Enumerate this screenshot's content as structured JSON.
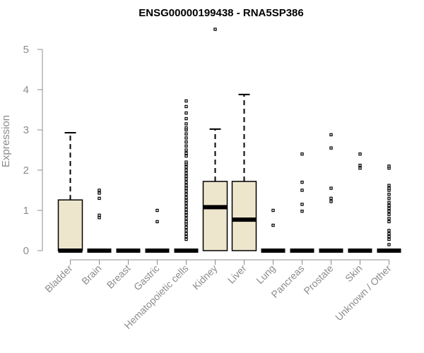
{
  "chart_data": {
    "type": "boxplot",
    "title": "ENSG00000199438 - RNA5SP386",
    "xlabel": "",
    "ylabel": "Expression",
    "ylim": [
      0,
      5
    ],
    "yticks": [
      0,
      1,
      2,
      3,
      4,
      5
    ],
    "box_color": "#ede6cd",
    "categories": [
      "Bladder",
      "Brain",
      "Breast",
      "Gastric",
      "Hematopoietic cells",
      "Kidney",
      "Liver",
      "Lung",
      "Pancreas",
      "Prostate",
      "Skin",
      "Unknown / Other"
    ],
    "series": [
      {
        "name": "Bladder",
        "q1": 0,
        "median": 0,
        "q3": 1.26,
        "whisker_low": 0,
        "whisker_high": 2.93,
        "outliers": []
      },
      {
        "name": "Brain",
        "q1": 0,
        "median": 0,
        "q3": 0,
        "whisker_low": 0,
        "whisker_high": 0,
        "outliers": [
          0.82,
          0.88,
          1.3,
          1.43,
          1.5
        ]
      },
      {
        "name": "Breast",
        "q1": 0,
        "median": 0,
        "q3": 0,
        "whisker_low": 0,
        "whisker_high": 0,
        "outliers": []
      },
      {
        "name": "Gastric",
        "q1": 0,
        "median": 0,
        "q3": 0,
        "whisker_low": 0,
        "whisker_high": 0,
        "outliers": [
          0.72,
          1.0
        ]
      },
      {
        "name": "Hematopoietic cells",
        "q1": 0,
        "median": 0,
        "q3": 0,
        "whisker_low": 0,
        "whisker_high": 0,
        "outliers": [
          0.28,
          0.35,
          0.42,
          0.5,
          0.58,
          0.66,
          0.72,
          0.8,
          0.88,
          0.95,
          1.02,
          1.1,
          1.18,
          1.25,
          1.32,
          1.4,
          1.48,
          1.55,
          1.62,
          1.7,
          1.78,
          1.85,
          1.92,
          2.0,
          2.08,
          2.15,
          2.2,
          2.35,
          2.42,
          2.5,
          2.6,
          2.7,
          2.8,
          2.9,
          3.0,
          3.05,
          3.15,
          3.28,
          3.42,
          3.58,
          3.72
        ]
      },
      {
        "name": "Kidney",
        "q1": 0,
        "median": 1.08,
        "q3": 1.72,
        "whisker_low": 0,
        "whisker_high": 3.02,
        "outliers": [
          5.5
        ]
      },
      {
        "name": "Liver",
        "q1": 0,
        "median": 0.77,
        "q3": 1.72,
        "whisker_low": 0,
        "whisker_high": 3.88,
        "outliers": []
      },
      {
        "name": "Lung",
        "q1": 0,
        "median": 0,
        "q3": 0,
        "whisker_low": 0,
        "whisker_high": 0,
        "outliers": [
          0.63,
          1.0
        ]
      },
      {
        "name": "Pancreas",
        "q1": 0,
        "median": 0,
        "q3": 0,
        "whisker_low": 0,
        "whisker_high": 0,
        "outliers": [
          0.98,
          1.15,
          1.5,
          1.7,
          2.4
        ]
      },
      {
        "name": "Prostate",
        "q1": 0,
        "median": 0,
        "q3": 0,
        "whisker_low": 0,
        "whisker_high": 0,
        "outliers": [
          1.22,
          1.3,
          1.55,
          2.55,
          2.88
        ]
      },
      {
        "name": "Skin",
        "q1": 0,
        "median": 0,
        "q3": 0,
        "whisker_low": 0,
        "whisker_high": 0,
        "outliers": [
          2.05,
          2.12,
          2.4
        ]
      },
      {
        "name": "Unknown / Other",
        "q1": 0,
        "median": 0,
        "q3": 0,
        "whisker_low": 0,
        "whisker_high": 0,
        "outliers": [
          0.15,
          0.28,
          0.35,
          0.42,
          0.5,
          0.72,
          0.8,
          0.9,
          0.98,
          1.05,
          1.12,
          1.2,
          1.3,
          1.4,
          1.5,
          1.55,
          1.62,
          2.05,
          2.1
        ]
      }
    ]
  }
}
